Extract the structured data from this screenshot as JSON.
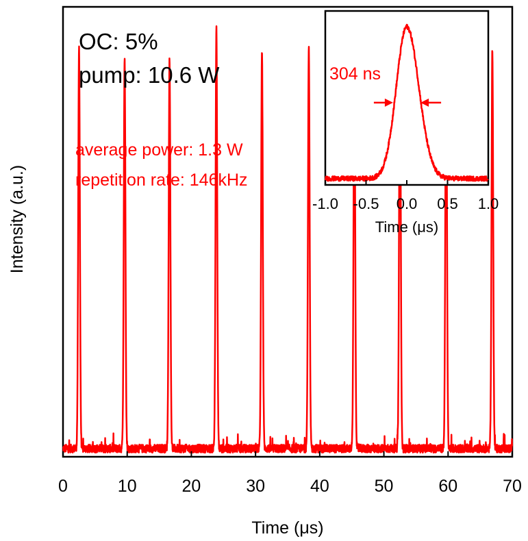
{
  "colors": {
    "trace": "#ff0000",
    "axis": "#000000",
    "annotation": "#ff0000"
  },
  "annotations": {
    "oc": "OC: 5%",
    "pump": "pump: 10.6 W",
    "avg_power": "average power: 1.3 W",
    "rep_rate": "repetition rate: 146kHz",
    "pulse_width": "304 ns"
  },
  "chart_data": [
    {
      "type": "line",
      "xlabel": "Time   (μs)",
      "ylabel": "Intensity   (a.u.)",
      "xlim": [
        0,
        70
      ],
      "ylim": [
        0,
        1.1
      ],
      "xticks": [
        0,
        10,
        20,
        30,
        40,
        50,
        60,
        70
      ],
      "xtick_labels": [
        "0",
        "10",
        "20",
        "30",
        "40",
        "50",
        "60",
        "70"
      ],
      "yticks_shown": false,
      "baseline": 0.02,
      "pulse_fwhm_us": 0.304,
      "series": [
        {
          "pulses": [
            {
              "t": 2.5,
              "peak": 1.0
            },
            {
              "t": 9.6,
              "peak": 0.975
            },
            {
              "t": 16.6,
              "peak": 0.975
            },
            {
              "t": 23.9,
              "peak": 1.045
            },
            {
              "t": 31.0,
              "peak": 1.0
            },
            {
              "t": 38.3,
              "peak": 1.0
            },
            {
              "t": 45.4,
              "peak": 0.975
            },
            {
              "t": 52.5,
              "peak": 1.025
            },
            {
              "t": 59.7,
              "peak": 1.02
            },
            {
              "t": 66.9,
              "peak": 1.0
            }
          ]
        }
      ]
    },
    {
      "type": "line",
      "xlabel": "Time   (μs)",
      "ylabel": "",
      "xlim": [
        -1.0,
        1.0
      ],
      "ylim": [
        0,
        1.1
      ],
      "xticks": [
        -1.0,
        -0.5,
        0.0,
        0.5,
        1.0
      ],
      "xtick_labels": [
        "-1.0",
        "-0.5",
        "0.0",
        "0.5",
        "1.0"
      ],
      "yticks_shown": false,
      "baseline": 0.04,
      "pulse_fwhm_us": 0.304,
      "series": [
        {
          "pulse": {
            "t": 0.0,
            "peak": 1.0
          }
        }
      ]
    }
  ]
}
